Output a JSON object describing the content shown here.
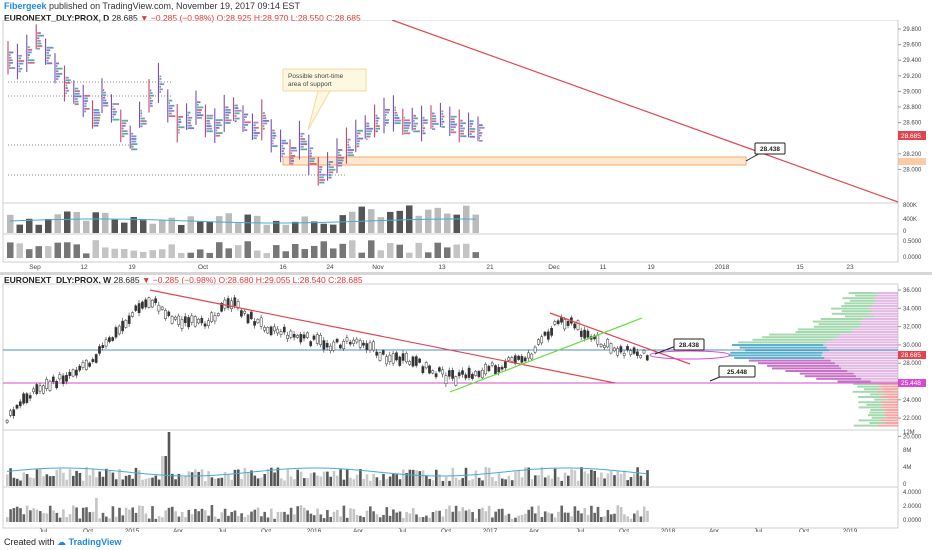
{
  "header": {
    "author": "Fibergeek",
    "text": " published on TradingView.com, November 19, 2017 09:14 EST"
  },
  "top_chart": {
    "symbol": "EURONEXT_DLY:PROX, D",
    "last": "28.685",
    "change": "−0.285 (−0.98%)",
    "ohlc": "O:28.925 H:28.970 L:28.550 C:28.685",
    "price_ticks": [
      "29.800",
      "29.600",
      "29.400",
      "29.200",
      "29.000",
      "28.800",
      "28.600",
      "28.400",
      "28.200",
      "28.000"
    ],
    "last_label": "28.685",
    "callout": "28.438",
    "note_line1": "Possible short-time",
    "note_line2": "area of support",
    "vol_ticks": [
      "800K",
      "400K",
      "0"
    ],
    "osc_ticks": [
      "0.5000",
      "0.0000"
    ],
    "x_ticks": [
      "Sep",
      "12",
      "19",
      "Oct",
      "16",
      "24",
      "Nov",
      "13",
      "21",
      "Dec",
      "11",
      "19",
      "2018",
      "15",
      "23"
    ],
    "colors": {
      "trend": "#e0464f",
      "support": "#f7a86b"
    }
  },
  "bottom_chart": {
    "symbol": "EURONEXT_DLY:PROX, W",
    "last": "28.685",
    "change": "−0.285 (−0.98%)",
    "ohlc": "O:28.680 H:29.055 L:28.540 C:28.685",
    "price_ticks": [
      "36.000",
      "34.000",
      "32.000",
      "30.000",
      "28.000",
      "26.000",
      "24.000",
      "22.000",
      "20.000"
    ],
    "last_label": "28.685",
    "level_label": "25.448",
    "callout1": "28.438",
    "callout2": "25.448",
    "vol_ticks": [
      "12M",
      "8M",
      "4M",
      "0"
    ],
    "osc_ticks": [
      "4.0000",
      "2.0000",
      "0.0000"
    ],
    "x_ticks": [
      "Jul",
      "Oct",
      "2015",
      "Apr",
      "Jul",
      "Oct",
      "2016",
      "Apr",
      "Jul",
      "Oct",
      "2017",
      "Apr",
      "Jul",
      "Oct",
      "2018",
      "Apr",
      "Jul",
      "Oct",
      "2019"
    ],
    "colors": {
      "downtrend": "#e0464f",
      "uptrend": "#66dd44",
      "support": "#d54bd5",
      "horizontal": "#4a90c8"
    }
  },
  "footer": {
    "created": "Created with",
    "brand": "TradingView"
  }
}
